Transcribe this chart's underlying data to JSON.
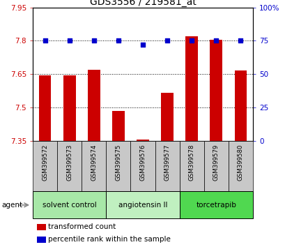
{
  "title": "GDS3556 / 219581_at",
  "samples": [
    "GSM399572",
    "GSM399573",
    "GSM399574",
    "GSM399575",
    "GSM399576",
    "GSM399577",
    "GSM399578",
    "GSM399579",
    "GSM399580"
  ],
  "red_values": [
    7.645,
    7.645,
    7.67,
    7.485,
    7.355,
    7.565,
    7.82,
    7.805,
    7.665
  ],
  "blue_values": [
    75,
    75,
    75,
    75,
    72,
    75,
    75,
    75,
    75
  ],
  "ylim_left": [
    7.35,
    7.95
  ],
  "ylim_right": [
    0,
    100
  ],
  "yticks_left": [
    7.35,
    7.5,
    7.65,
    7.8,
    7.95
  ],
  "yticks_right": [
    0,
    25,
    50,
    75,
    100
  ],
  "ytick_labels_left": [
    "7.35",
    "7.5",
    "7.65",
    "7.8",
    "7.95"
  ],
  "ytick_labels_right": [
    "0",
    "25",
    "50",
    "75",
    "100%"
  ],
  "grid_yticks": [
    7.5,
    7.65,
    7.8
  ],
  "groups": [
    {
      "label": "solvent control",
      "start": 0,
      "end": 3,
      "color": "#a8e8a8"
    },
    {
      "label": "angiotensin II",
      "start": 3,
      "end": 6,
      "color": "#c0f0c0"
    },
    {
      "label": "torcetrapib",
      "start": 6,
      "end": 9,
      "color": "#50d850"
    }
  ],
  "bar_color": "#cc0000",
  "dot_color": "#0000cc",
  "background_color": "#ffffff",
  "x_label_bg": "#c8c8c8",
  "bar_width": 0.5,
  "agent_label": "agent"
}
